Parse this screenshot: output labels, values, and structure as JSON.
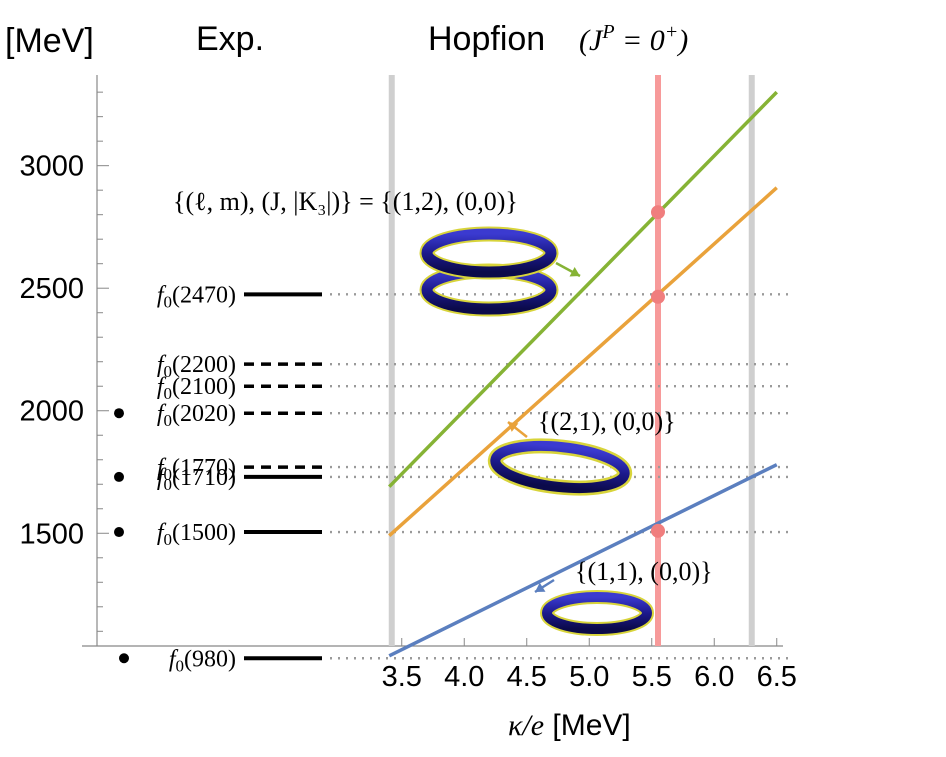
{
  "chart_data": {
    "type": "line",
    "title": "Hopfion",
    "exp_title": "Exp.",
    "ylabel": "[MeV]",
    "xlabel_symbol": "κ/e",
    "xlabel_unit": " [MeV]",
    "xlim": [
      3.35,
      6.55
    ],
    "ylim": [
      1040,
      3370
    ],
    "xticks": [
      "3.5",
      "4.0",
      "4.5",
      "5.0",
      "5.5",
      "6.0",
      "6.5"
    ],
    "yticks": [
      "1500",
      "2000",
      "2500",
      "3000"
    ],
    "x_reference_lines": [
      {
        "x": 3.42,
        "color": "#cfcfcf"
      },
      {
        "x": 5.55,
        "color": "#f79a9a"
      },
      {
        "x": 6.3,
        "color": "#cfcfcf"
      }
    ],
    "series": [
      {
        "label": "{(1,2), (0,0)}",
        "color": "#86b335",
        "points": [
          [
            3.4,
            1690
          ],
          [
            6.5,
            3300
          ]
        ]
      },
      {
        "label": "{(2,1), (0,0)}",
        "color": "#e9a23b",
        "points": [
          [
            3.4,
            1490
          ],
          [
            6.5,
            2910
          ]
        ]
      },
      {
        "label": "{(1,1), (0,0)}",
        "color": "#5b7fbf",
        "points": [
          [
            3.4,
            1000
          ],
          [
            6.5,
            1780
          ]
        ]
      }
    ],
    "intersections": [
      {
        "x": 5.55,
        "y": 2810
      },
      {
        "x": 5.55,
        "y": 2465
      },
      {
        "x": 5.55,
        "y": 1510
      }
    ],
    "experimental_levels": [
      {
        "name": "f",
        "sub": "0",
        "mass": "(2470)",
        "y": 2475,
        "style": "solid",
        "bullet": false
      },
      {
        "name": "f",
        "sub": "0",
        "mass": "(2200)",
        "y": 2190,
        "style": "dashed",
        "bullet": false
      },
      {
        "name": "f",
        "sub": "0",
        "mass": "(2100)",
        "y": 2100,
        "style": "dashed",
        "bullet": false
      },
      {
        "name": "f",
        "sub": "0",
        "mass": "(2020)",
        "y": 1990,
        "style": "dashed",
        "bullet": true
      },
      {
        "name": "f",
        "sub": "0",
        "mass": "(1770)",
        "y": 1770,
        "style": "dashed",
        "bullet": false
      },
      {
        "name": "f",
        "sub": "0",
        "mass": "(1710)",
        "y": 1730,
        "style": "solid",
        "bullet": true
      },
      {
        "name": "f",
        "sub": "0",
        "mass": "(1500)",
        "y": 1505,
        "style": "solid",
        "bullet": true
      },
      {
        "name": "f",
        "sub": "0",
        "mass": "(980)",
        "y": 990,
        "style": "solid",
        "bullet": true
      }
    ],
    "annotations": [
      {
        "text": "{(ℓ, m), (J, |K₃|)} = {(1,2), (0,0)}",
        "series": 0
      },
      {
        "text": "{(2,1), (0,0)}",
        "series": 1
      },
      {
        "text": "{(1,1), (0,0)}",
        "series": 2
      }
    ]
  }
}
